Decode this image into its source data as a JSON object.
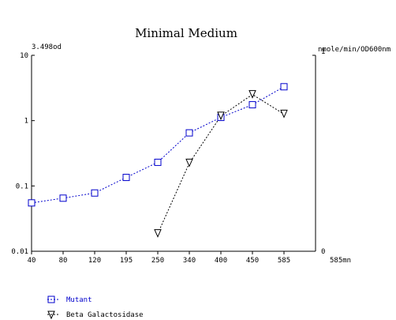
{
  "chart_data": {
    "type": "line",
    "title": "Minimal Medium",
    "left_axis_top_label": "3.498od",
    "right_axis_label": "nmole/min/OD600nm",
    "x_end_label": "585mn",
    "x_ticks": [
      40,
      80,
      120,
      195,
      250,
      340,
      400,
      450,
      585
    ],
    "xlim": [
      40,
      585
    ],
    "y_left": {
      "scale": "log",
      "lim": [
        0.01,
        10
      ],
      "tick_labels": [
        "10",
        "1",
        "0.1",
        "0.01"
      ],
      "tick_values": [
        10,
        1,
        0.1,
        0.01
      ]
    },
    "y_right": {
      "scale": "linear",
      "lim": [
        0,
        1
      ],
      "tick_labels": [
        "1",
        "0"
      ],
      "tick_values": [
        1,
        0
      ]
    },
    "grid": false,
    "legend_position": "bottom-left",
    "series": [
      {
        "name": "Mutant",
        "axis": "left",
        "marker": "square",
        "color": "#0000cc",
        "x": [
          40,
          80,
          120,
          195,
          250,
          340,
          400,
          450,
          585
        ],
        "y": [
          0.055,
          0.065,
          0.078,
          0.135,
          0.23,
          0.65,
          1.12,
          1.75,
          3.3
        ]
      },
      {
        "name": "Beta Galactosidase",
        "axis": "right",
        "marker": "triangle-down",
        "color": "#000000",
        "x": [
          250,
          340,
          400,
          450,
          585
        ],
        "y": [
          0.09,
          0.45,
          0.69,
          0.8,
          0.7
        ]
      }
    ]
  }
}
